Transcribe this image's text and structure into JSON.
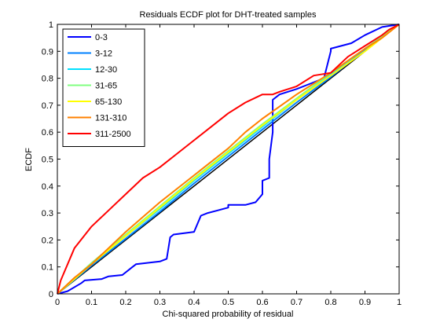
{
  "chart_data": {
    "type": "line",
    "title": "Residuals ECDF plot for DHT-treated samples",
    "xlabel": "Chi-squared probability of residual",
    "ylabel": "ECDF",
    "xlim": [
      0,
      1
    ],
    "ylim": [
      0,
      1
    ],
    "xticks": [
      "0",
      "0.1",
      "0.2",
      "0.3",
      "0.4",
      "0.5",
      "0.6",
      "0.7",
      "0.8",
      "0.9",
      "1"
    ],
    "yticks": [
      "0",
      "0.1",
      "0.2",
      "0.3",
      "0.4",
      "0.5",
      "0.6",
      "0.7",
      "0.8",
      "0.9",
      "1"
    ],
    "grid": false,
    "legend_position": "top-left",
    "reference_line": {
      "x": [
        0,
        1
      ],
      "y": [
        0,
        1
      ],
      "color": "#000000"
    },
    "series": [
      {
        "name": "0-3",
        "color": "#0000ff",
        "x": [
          0,
          0.03,
          0.07,
          0.08,
          0.13,
          0.15,
          0.19,
          0.22,
          0.23,
          0.3,
          0.32,
          0.33,
          0.34,
          0.4,
          0.42,
          0.44,
          0.47,
          0.5,
          0.5,
          0.55,
          0.58,
          0.6,
          0.6,
          0.62,
          0.62,
          0.63,
          0.63,
          0.65,
          0.7,
          0.74,
          0.78,
          0.8,
          0.8,
          0.86,
          0.9,
          0.95,
          1.0
        ],
        "y": [
          0,
          0.01,
          0.04,
          0.05,
          0.055,
          0.065,
          0.07,
          0.1,
          0.11,
          0.12,
          0.13,
          0.21,
          0.22,
          0.23,
          0.29,
          0.3,
          0.31,
          0.32,
          0.33,
          0.33,
          0.34,
          0.37,
          0.42,
          0.43,
          0.5,
          0.6,
          0.72,
          0.74,
          0.76,
          0.78,
          0.8,
          0.9,
          0.91,
          0.93,
          0.96,
          0.99,
          1.0
        ]
      },
      {
        "name": "3-12",
        "color": "#0080ff",
        "x": [
          0,
          0.1,
          0.2,
          0.3,
          0.4,
          0.5,
          0.6,
          0.7,
          0.8,
          0.9,
          1.0
        ],
        "y": [
          0,
          0.105,
          0.205,
          0.305,
          0.41,
          0.51,
          0.61,
          0.71,
          0.805,
          0.905,
          1.0
        ]
      },
      {
        "name": "12-30",
        "color": "#00e0ff",
        "x": [
          0,
          0.1,
          0.2,
          0.3,
          0.4,
          0.5,
          0.6,
          0.7,
          0.8,
          0.9,
          1.0
        ],
        "y": [
          0,
          0.11,
          0.215,
          0.315,
          0.42,
          0.52,
          0.62,
          0.72,
          0.815,
          0.91,
          1.0
        ]
      },
      {
        "name": "31-65",
        "color": "#80ff80",
        "x": [
          0,
          0.1,
          0.2,
          0.3,
          0.4,
          0.5,
          0.6,
          0.7,
          0.8,
          0.9,
          1.0
        ],
        "y": [
          0,
          0.115,
          0.22,
          0.325,
          0.43,
          0.53,
          0.63,
          0.725,
          0.82,
          0.91,
          1.0
        ]
      },
      {
        "name": "65-130",
        "color": "#ffff00",
        "x": [
          0,
          0.1,
          0.2,
          0.3,
          0.4,
          0.5,
          0.6,
          0.7,
          0.8,
          0.9,
          1.0
        ],
        "y": [
          0,
          0.11,
          0.215,
          0.32,
          0.425,
          0.525,
          0.625,
          0.72,
          0.81,
          0.9,
          1.0
        ]
      },
      {
        "name": "131-310",
        "color": "#ff8000",
        "x": [
          0,
          0.05,
          0.1,
          0.15,
          0.2,
          0.3,
          0.4,
          0.5,
          0.55,
          0.6,
          0.7,
          0.8,
          0.9,
          0.95,
          1.0
        ],
        "y": [
          0,
          0.06,
          0.11,
          0.17,
          0.23,
          0.34,
          0.44,
          0.54,
          0.6,
          0.65,
          0.74,
          0.82,
          0.91,
          0.95,
          1.0
        ]
      },
      {
        "name": "311-2500",
        "color": "#ff0000",
        "x": [
          0,
          0.01,
          0.05,
          0.1,
          0.15,
          0.2,
          0.25,
          0.3,
          0.35,
          0.4,
          0.45,
          0.5,
          0.55,
          0.6,
          0.63,
          0.65,
          0.7,
          0.75,
          0.8,
          0.85,
          0.9,
          0.95,
          0.97,
          1.0
        ],
        "y": [
          0,
          0.05,
          0.17,
          0.25,
          0.31,
          0.37,
          0.43,
          0.47,
          0.52,
          0.57,
          0.62,
          0.67,
          0.71,
          0.74,
          0.74,
          0.75,
          0.77,
          0.81,
          0.82,
          0.88,
          0.92,
          0.96,
          0.98,
          1.0
        ]
      }
    ]
  }
}
